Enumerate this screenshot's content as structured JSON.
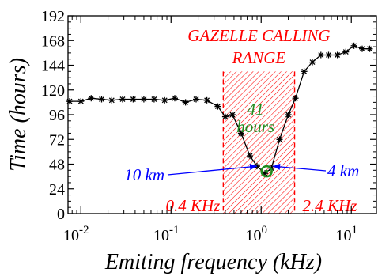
{
  "chart_data": {
    "type": "line",
    "xscale": "log",
    "xlabel": "Emiting frequency (kHz)",
    "ylabel": "Time (hours)",
    "xlim": [
      0.0072,
      19
    ],
    "ylim": [
      0,
      192
    ],
    "yticks": [
      0,
      24,
      48,
      72,
      96,
      120,
      144,
      168,
      192
    ],
    "xticks": [
      {
        "value": 0.01,
        "base": "10",
        "exp": "-2"
      },
      {
        "value": 0.1,
        "base": "10",
        "exp": "-1"
      },
      {
        "value": 1,
        "base": "10",
        "exp": "0"
      },
      {
        "value": 10,
        "base": "10",
        "exp": "1"
      }
    ],
    "grid": false,
    "series": [
      {
        "color": "#000000",
        "marker": "asterisk",
        "x": [
          0.0075,
          0.01,
          0.013,
          0.017,
          0.022,
          0.029,
          0.038,
          0.05,
          0.065,
          0.085,
          0.11,
          0.145,
          0.19,
          0.25,
          0.33,
          0.4,
          0.48,
          0.6,
          0.75,
          0.9,
          1.1,
          1.3,
          1.6,
          2.0,
          2.4,
          3.0,
          3.7,
          4.6,
          5.6,
          7.0,
          8.7,
          10.7,
          13.2,
          16.0
        ],
        "y": [
          109,
          109,
          112,
          111,
          110,
          111,
          111,
          111,
          111,
          110,
          112,
          108,
          111,
          110,
          104,
          94,
          96,
          78,
          56,
          46,
          39,
          44,
          72,
          96,
          112,
          138,
          147,
          154,
          154,
          154,
          157,
          163,
          160,
          160
        ]
      }
    ],
    "range": {
      "title_lines": [
        "GAZELLE CALLING",
        "RANGE"
      ],
      "x_from": 0.38,
      "x_to": 2.35,
      "y_top": 138,
      "color": "#ff0000",
      "low_label": "0.4 KHz",
      "high_label": "2.4 KHz"
    },
    "minimum": {
      "x": 1.15,
      "y": 41,
      "label_lines": [
        "41",
        "hours"
      ],
      "color": "#1e8c1e"
    },
    "annotations": [
      {
        "text": "10 km",
        "color": "#0000ff",
        "target_x": 0.9,
        "target_y": 46,
        "side": "left"
      },
      {
        "text": "4 km",
        "color": "#0000ff",
        "target_x": 1.35,
        "target_y": 46,
        "side": "right"
      }
    ]
  }
}
